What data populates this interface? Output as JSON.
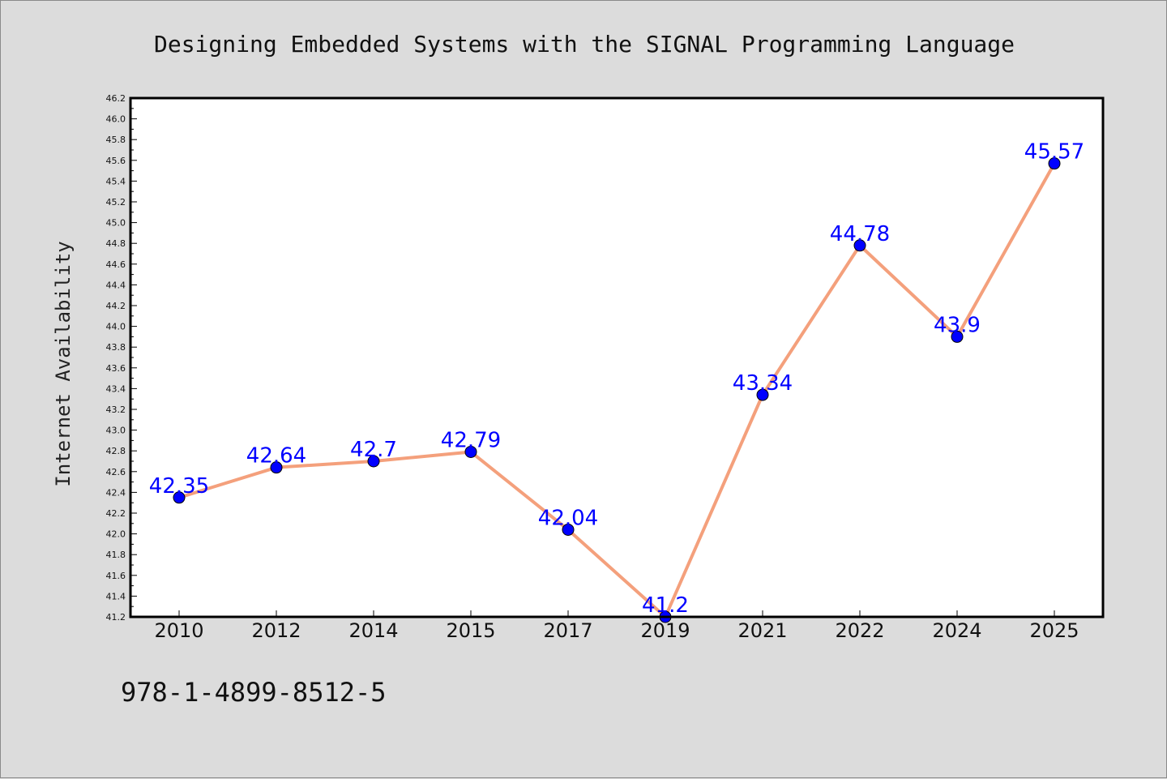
{
  "chart_data": {
    "type": "line",
    "title": "Designing Embedded Systems with the SIGNAL Programming Language",
    "ylabel": "Internet Availability",
    "xlabel": "",
    "categories": [
      "2010",
      "2012",
      "2014",
      "2015",
      "2017",
      "2019",
      "2021",
      "2022",
      "2024",
      "2025"
    ],
    "values": [
      42.35,
      42.64,
      42.7,
      42.79,
      42.04,
      41.2,
      43.34,
      44.78,
      43.9,
      45.57
    ],
    "data_labels": [
      "42.35",
      "42.64",
      "42.7",
      "42.79",
      "42.04",
      "41.2",
      "43.34",
      "44.78",
      "43.9",
      "45.57"
    ],
    "ylim": [
      41.2,
      46.2
    ],
    "yticks": [
      "41.2",
      "41.4",
      "41.6",
      "41.8",
      "42.0",
      "42.2",
      "42.4",
      "42.6",
      "42.8",
      "43.0",
      "43.2",
      "43.4",
      "43.6",
      "43.8",
      "44.0",
      "44.2",
      "44.4",
      "44.6",
      "44.8",
      "45.0",
      "45.2",
      "45.4",
      "45.6",
      "45.8",
      "46.0",
      "46.2"
    ],
    "grid": false,
    "line_color": "#f4a07c",
    "marker_color": "#0000ff",
    "label_color": "#0000ff",
    "background": "#dcdcdc",
    "plot_background": "#ffffff"
  },
  "footer": {
    "isbn": "978-1-4899-8512-5"
  }
}
